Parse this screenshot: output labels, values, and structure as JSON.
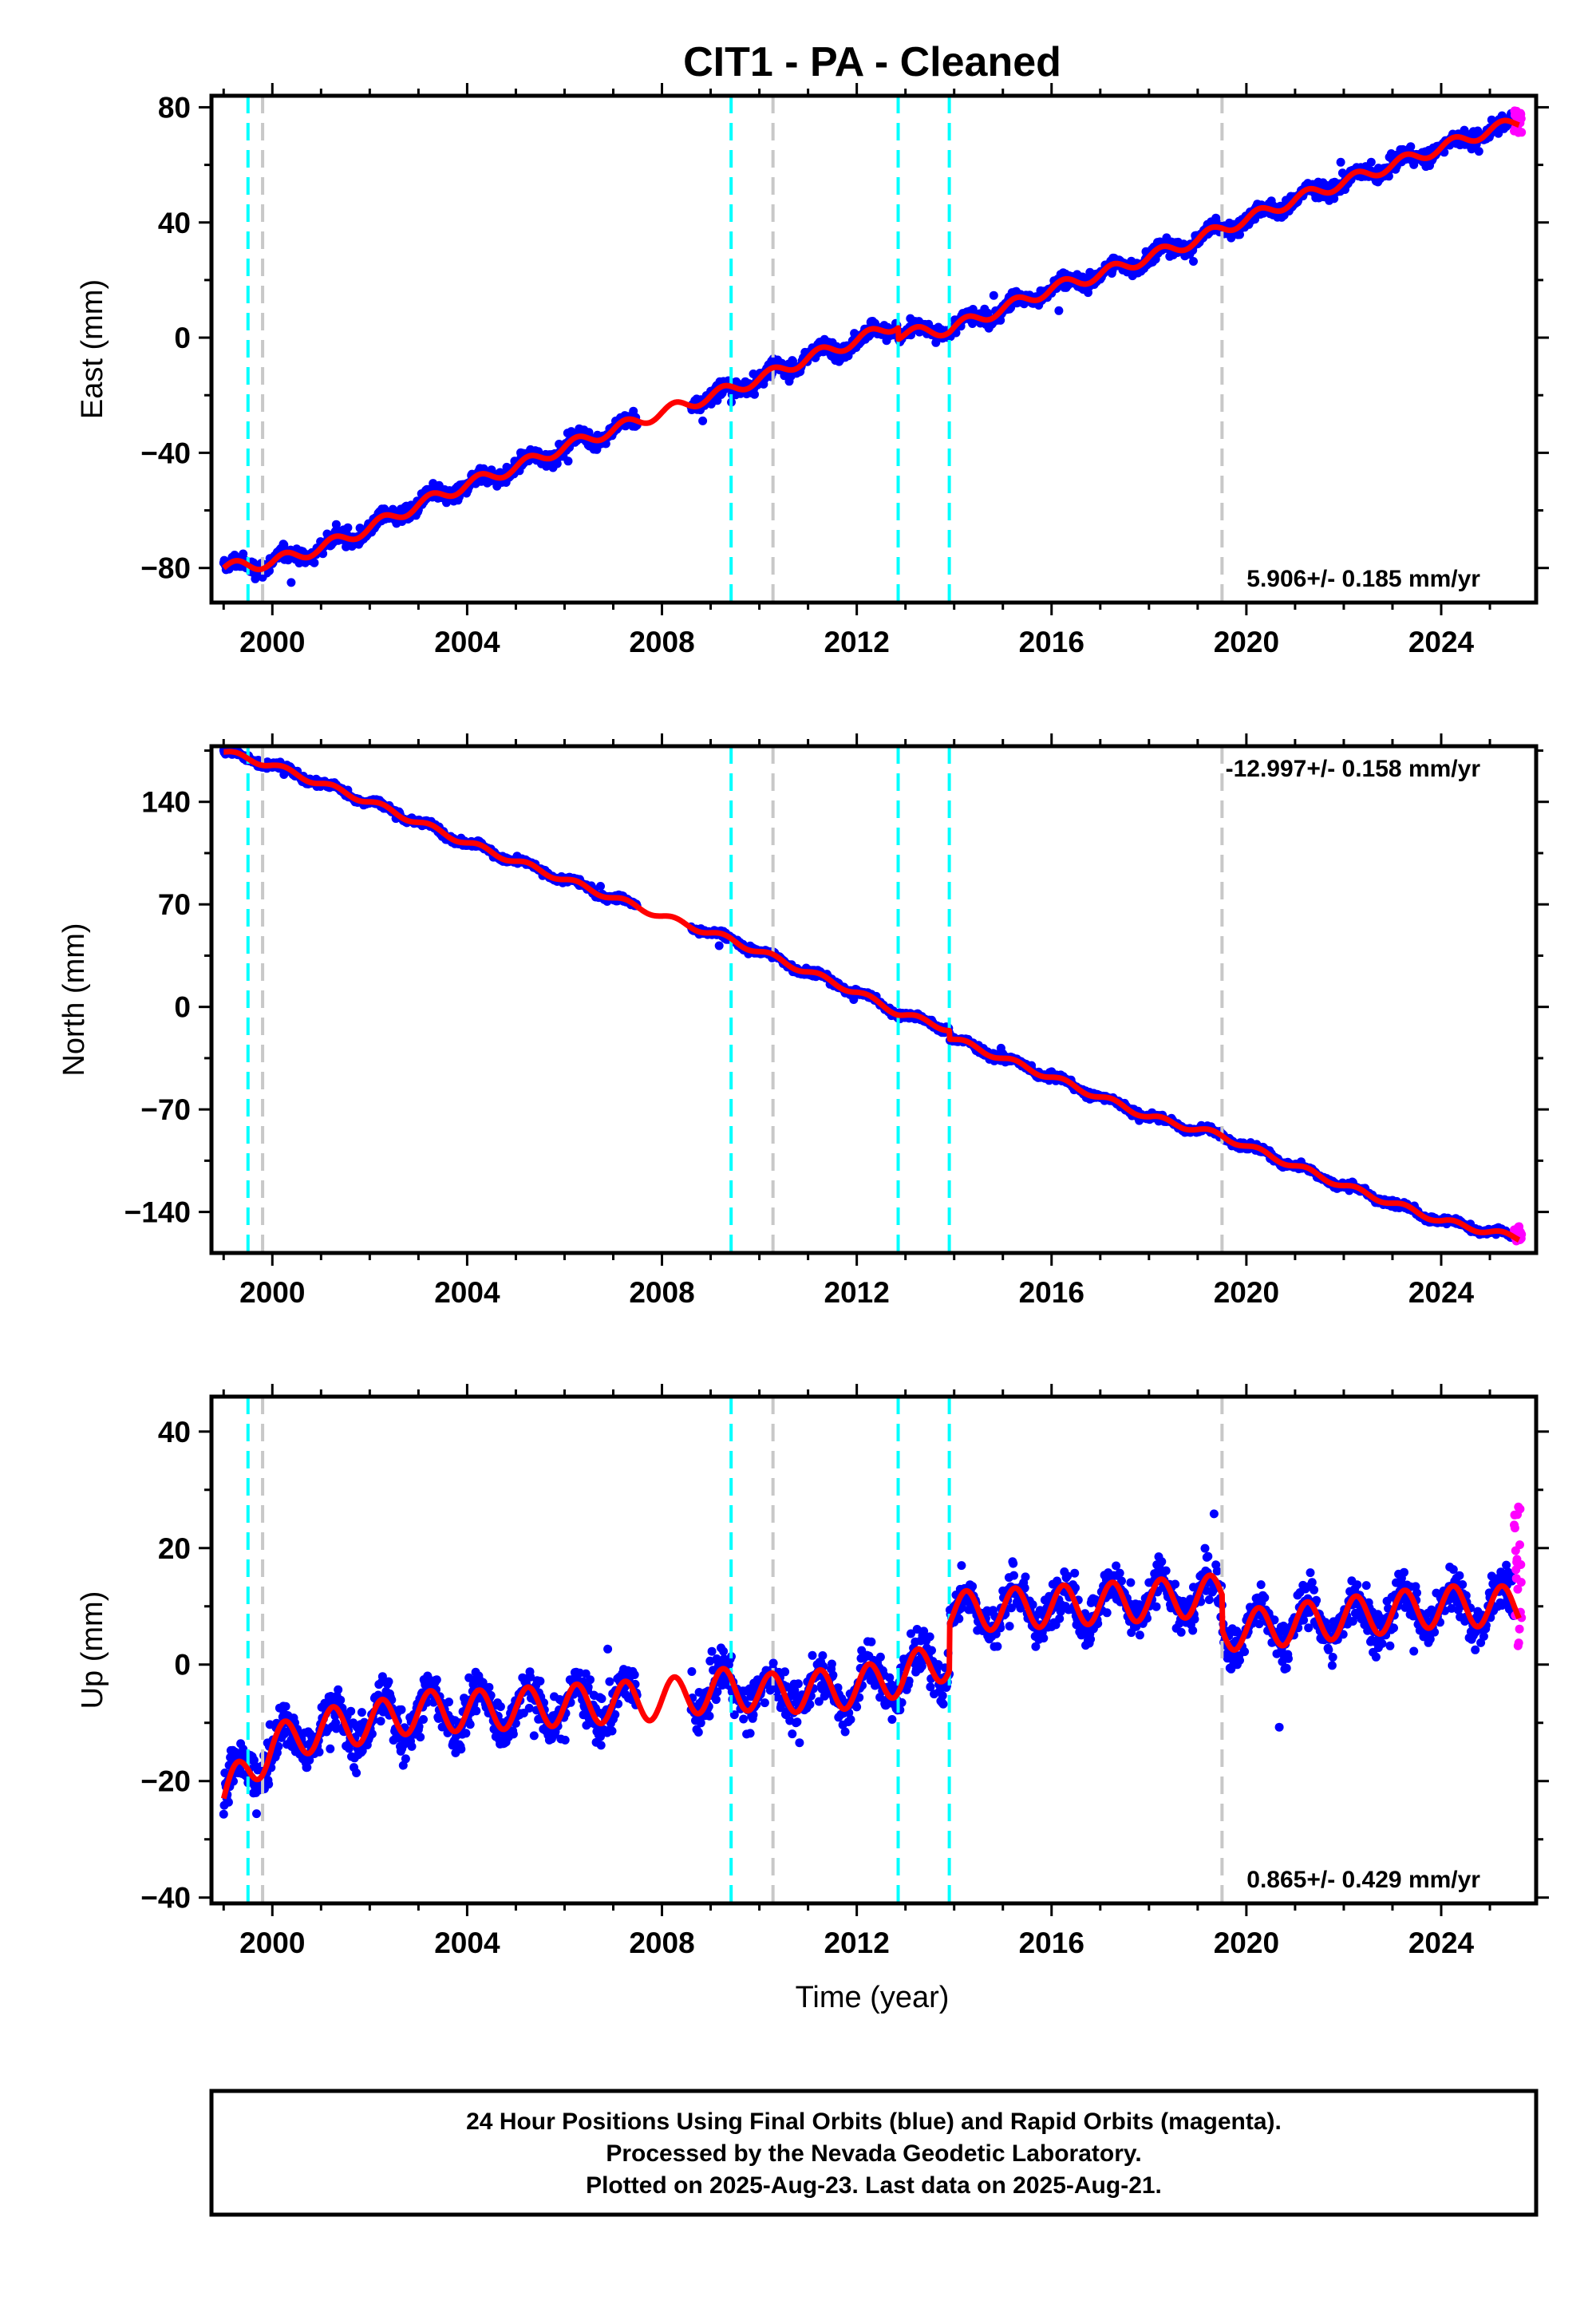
{
  "title": "CIT1  - PA - Cleaned",
  "colors": {
    "final_orbits": "#0000ff",
    "rapid_orbits": "#ff00ff",
    "model": "#ff0000",
    "equipment_change": "#00ffff",
    "other_event": "#c8c8c8"
  },
  "xlabel": "Time (year)",
  "chart_data": [
    {
      "type": "scatter",
      "ylabel": "East (mm)",
      "xlim": [
        1998.75,
        2025.95
      ],
      "ylim": [
        -92,
        84
      ],
      "xticks": [
        2000,
        2004,
        2008,
        2012,
        2016,
        2020,
        2024
      ],
      "yticks": [
        -80,
        -40,
        0,
        40,
        80
      ],
      "ytick_labels": [
        "−80",
        "−40",
        "0",
        "40",
        "80"
      ],
      "rate_label": "5.906+/- 0.185 mm/yr",
      "rate_position": "bottom-right",
      "rate": 5.906,
      "model_line": {
        "x": [
          1999.0,
          2000.0,
          2001.0,
          2002.0,
          2003.0,
          2004.0,
          2005.0,
          2006.0,
          2007.0,
          2008.0,
          2009.4,
          2010.2,
          2011.0,
          2012.0,
          2012.85,
          2012.86,
          2013.9,
          2015.0,
          2016.0,
          2017.0,
          2018.0,
          2019.0,
          2019.5,
          2020.0,
          2021.0,
          2022.0,
          2023.0,
          2024.0,
          2025.0,
          2025.6
        ],
        "y": [
          -80,
          -78,
          -73,
          -66,
          -58,
          -51,
          -45,
          -38,
          -32,
          -26,
          -18,
          -13,
          -7,
          -1,
          5,
          1,
          3,
          10,
          17,
          22,
          28,
          34,
          38,
          41,
          48,
          54,
          60,
          66,
          72,
          75
        ]
      },
      "annual_amplitude": 2.0,
      "scatter_noise": 3.5,
      "rapid_points": {
        "x_start": 2025.5,
        "x_end": 2025.65,
        "y_center": 75,
        "spread": 4
      }
    },
    {
      "type": "scatter",
      "ylabel": "North (mm)",
      "xlim": [
        1998.75,
        2025.95
      ],
      "ylim": [
        -168,
        178
      ],
      "xticks": [
        2000,
        2004,
        2008,
        2012,
        2016,
        2020,
        2024
      ],
      "yticks": [
        -140,
        -70,
        0,
        70,
        140
      ],
      "ytick_labels": [
        "−140",
        "−70",
        "0",
        "70",
        "140"
      ],
      "rate_label": "-12.997+/- 0.158 mm/yr",
      "rate_position": "top-right",
      "rate": -12.997,
      "model_line": {
        "x": [
          1999.0,
          2000.0,
          2002.0,
          2004.0,
          2006.0,
          2008.0,
          2009.4,
          2010.2,
          2012.0,
          2012.85,
          2013.9,
          2013.91,
          2016.0,
          2018.0,
          2019.5,
          2020.0,
          2022.0,
          2024.0,
          2025.6
        ],
        "y": [
          174,
          165,
          140,
          112,
          87,
          62,
          46,
          35,
          10,
          -4,
          -15,
          -21,
          -48,
          -75,
          -88,
          -95,
          -122,
          -146,
          -158
        ]
      },
      "annual_amplitude": 2.0,
      "scatter_noise": 3.0,
      "rapid_points": {
        "x_start": 2025.5,
        "x_end": 2025.65,
        "y_center": -155,
        "spread": 5
      }
    },
    {
      "type": "scatter",
      "ylabel": "Up (mm)",
      "xlim": [
        1998.75,
        2025.95
      ],
      "ylim": [
        -41,
        46
      ],
      "xticks": [
        2000,
        2004,
        2008,
        2012,
        2016,
        2020,
        2024
      ],
      "yticks": [
        -40,
        -20,
        0,
        20,
        40
      ],
      "ytick_labels": [
        "−40",
        "−20",
        "0",
        "20",
        "40"
      ],
      "rate_label": "0.865+/- 0.429 mm/yr",
      "rate_position": "bottom-right",
      "rate": 0.865,
      "model_line": {
        "x": [
          1999.0,
          1999.5,
          2000.0,
          2001.0,
          2002.0,
          2003.0,
          2004.0,
          2006.0,
          2008.0,
          2009.4,
          2010.2,
          2012.0,
          2012.85,
          2013.9,
          2013.91,
          2016.0,
          2018.0,
          2019.5,
          2019.51,
          2020.0,
          2022.0,
          2024.0,
          2025.6
        ],
        "y": [
          -23,
          -18,
          -14,
          -11,
          -10,
          -8,
          -8,
          -7,
          -6,
          -4,
          -5,
          -4,
          -2,
          1,
          9,
          10,
          11,
          12,
          6,
          6,
          8,
          10,
          10
        ]
      },
      "annual_amplitude": 3.5,
      "scatter_noise": 5.0,
      "rapid_points": {
        "x_start": 2025.5,
        "x_end": 2025.65,
        "y_center": 16,
        "spread": 14
      }
    }
  ],
  "event_lines": {
    "equipment_change": [
      1999.5,
      2009.42,
      2012.85,
      2013.9
    ],
    "other_event": [
      1999.8,
      2010.28,
      2019.5
    ]
  },
  "footer": {
    "line1": "24 Hour Positions Using Final Orbits (blue) and Rapid Orbits (magenta).",
    "line2": "Processed by the Nevada Geodetic Laboratory.",
    "line3": "Plotted on 2025-Aug-23. Last data on 2025-Aug-21."
  }
}
